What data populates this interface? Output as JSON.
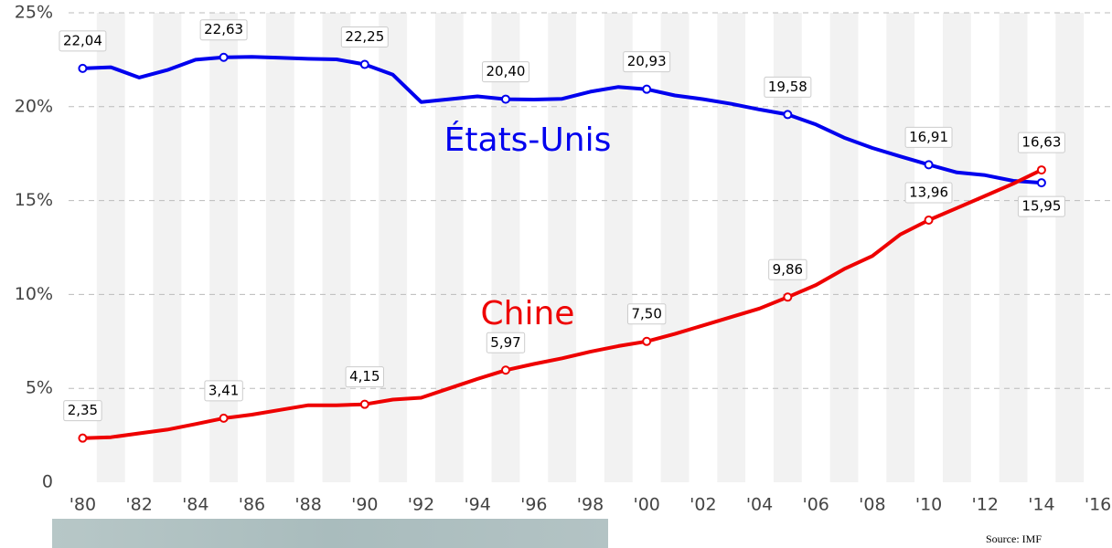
{
  "chart_data": {
    "type": "line",
    "x": [
      1980,
      1981,
      1982,
      1983,
      1984,
      1985,
      1986,
      1987,
      1988,
      1989,
      1990,
      1991,
      1992,
      1993,
      1994,
      1995,
      1996,
      1997,
      1998,
      1999,
      2000,
      2001,
      2002,
      2003,
      2004,
      2005,
      2006,
      2007,
      2008,
      2009,
      2010,
      2011,
      2012,
      2013,
      2014
    ],
    "series": [
      {
        "name": "États-Unis",
        "color": "#0000ee",
        "values": [
          22.04,
          22.1,
          21.55,
          21.95,
          22.5,
          22.63,
          22.65,
          22.6,
          22.55,
          22.52,
          22.25,
          21.7,
          20.25,
          20.4,
          20.55,
          20.4,
          20.38,
          20.42,
          20.8,
          21.05,
          20.93,
          20.6,
          20.4,
          20.15,
          19.85,
          19.58,
          19.05,
          18.35,
          17.8,
          17.35,
          16.91,
          16.5,
          16.35,
          16.05,
          15.95
        ],
        "value_labels": [
          "22,04",
          null,
          null,
          null,
          null,
          "22,63",
          null,
          null,
          null,
          null,
          "22,25",
          null,
          null,
          null,
          null,
          "20,40",
          null,
          null,
          null,
          null,
          "20,93",
          null,
          null,
          null,
          null,
          "19,58",
          null,
          null,
          null,
          null,
          "16,91",
          null,
          null,
          null,
          "15,95"
        ]
      },
      {
        "name": "Chine",
        "color": "#ee0000",
        "values": [
          2.35,
          2.4,
          2.6,
          2.8,
          3.1,
          3.41,
          3.6,
          3.85,
          4.1,
          4.1,
          4.15,
          4.4,
          4.5,
          5.0,
          5.5,
          5.97,
          6.3,
          6.6,
          6.95,
          7.25,
          7.5,
          7.9,
          8.35,
          8.8,
          9.25,
          9.86,
          10.5,
          11.35,
          12.05,
          13.2,
          13.96,
          14.6,
          15.25,
          15.9,
          16.63
        ],
        "value_labels": [
          "2,35",
          null,
          null,
          null,
          null,
          "3,41",
          null,
          null,
          null,
          null,
          "4,15",
          null,
          null,
          null,
          null,
          "5,97",
          null,
          null,
          null,
          null,
          "7,50",
          null,
          null,
          null,
          null,
          "9,86",
          null,
          null,
          null,
          null,
          "13,96",
          null,
          null,
          null,
          "16,63"
        ]
      }
    ],
    "xlim": [
      1979.5,
      2016.5
    ],
    "xticks": [
      {
        "value": 1980,
        "label": "'80"
      },
      {
        "value": 1982,
        "label": "'82"
      },
      {
        "value": 1984,
        "label": "'84"
      },
      {
        "value": 1986,
        "label": "'86"
      },
      {
        "value": 1988,
        "label": "'88"
      },
      {
        "value": 1990,
        "label": "'90"
      },
      {
        "value": 1992,
        "label": "'92"
      },
      {
        "value": 1994,
        "label": "'94"
      },
      {
        "value": 1996,
        "label": "'96"
      },
      {
        "value": 1998,
        "label": "'98"
      },
      {
        "value": 2000,
        "label": "'00"
      },
      {
        "value": 2002,
        "label": "'02"
      },
      {
        "value": 2004,
        "label": "'04"
      },
      {
        "value": 2006,
        "label": "'06"
      },
      {
        "value": 2008,
        "label": "'08"
      },
      {
        "value": 2010,
        "label": "'10"
      },
      {
        "value": 2012,
        "label": "'12"
      },
      {
        "value": 2014,
        "label": "'14"
      },
      {
        "value": 2016,
        "label": "'16"
      }
    ],
    "ylim": [
      0,
      25
    ],
    "yticks": [
      0,
      {
        "value": 5,
        "label": "5%"
      },
      {
        "value": 10,
        "label": "10%"
      },
      {
        "value": 15,
        "label": "15%"
      },
      {
        "value": 20,
        "label": "20%"
      },
      {
        "value": 25,
        "label": "25%"
      }
    ],
    "grid": true,
    "source": "Source: IMF"
  }
}
